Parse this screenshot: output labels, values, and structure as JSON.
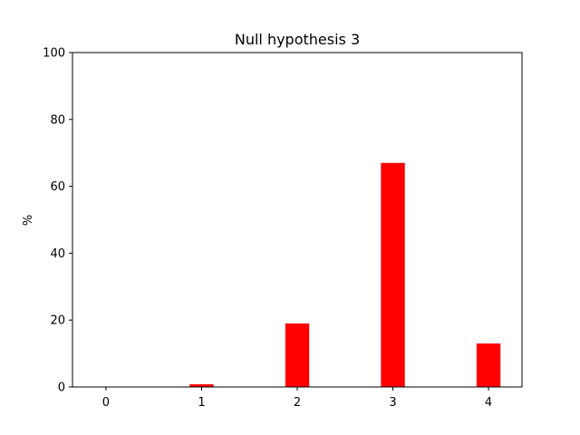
{
  "chart_data": {
    "type": "bar",
    "title": "Null hypothesis 3",
    "xlabel": "",
    "ylabel": "%",
    "categories": [
      "0",
      "1",
      "2",
      "3",
      "4"
    ],
    "x": [
      0,
      1,
      2,
      3,
      4
    ],
    "values": [
      0,
      0.8,
      19,
      67,
      13
    ],
    "bar_color": "#ff0000",
    "xlim": [
      -0.35,
      4.35
    ],
    "ylim": [
      0,
      100
    ],
    "yticks": [
      0,
      20,
      40,
      60,
      80,
      100
    ],
    "ytick_labels": [
      "0",
      "20",
      "40",
      "60",
      "80",
      "100"
    ],
    "grid": false,
    "legend": "none"
  }
}
